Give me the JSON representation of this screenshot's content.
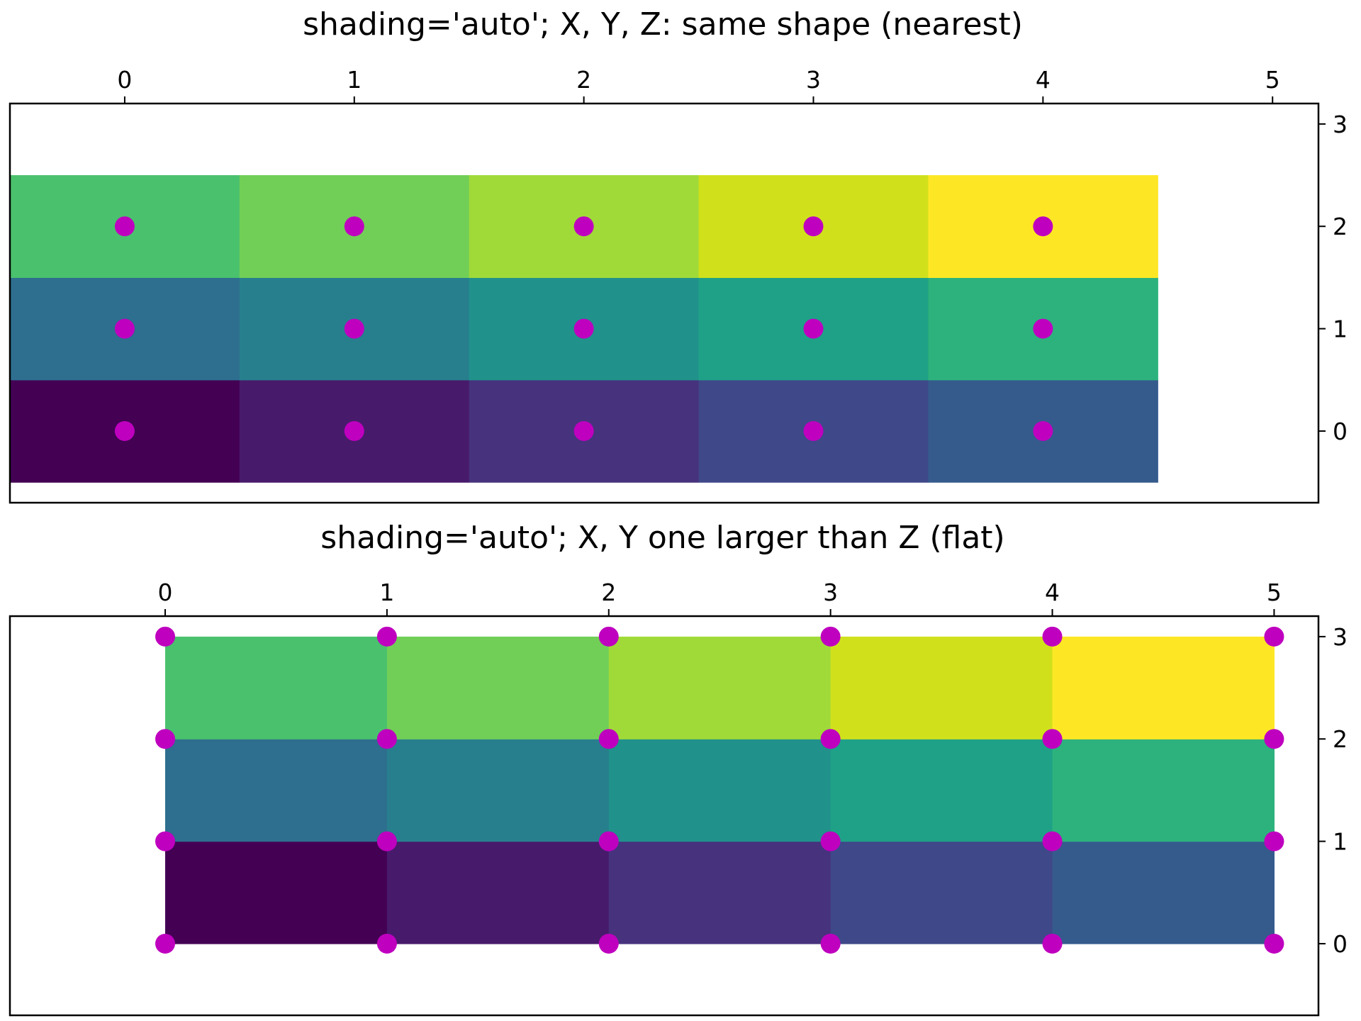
{
  "chart_data": [
    {
      "type": "heatmap",
      "title": "shading='auto'; X, Y, Z: same shape (nearest)",
      "xlabel": "",
      "ylabel": "",
      "x_axis_position": "top",
      "y_axis_position": "right",
      "xlim": [
        -0.5,
        5.2
      ],
      "ylim": [
        -0.7,
        3.2
      ],
      "xticks": [
        0,
        1,
        2,
        3,
        4,
        5
      ],
      "yticks": [
        0,
        1,
        2,
        3
      ],
      "shading": "nearest",
      "x": [
        0,
        1,
        2,
        3,
        4
      ],
      "y": [
        0,
        1,
        2
      ],
      "cell_colors": [
        [
          "#440154",
          "#481a6c",
          "#47327e",
          "#3f4889",
          "#355b8d"
        ],
        [
          "#2e6e8e",
          "#277f8e",
          "#21918c",
          "#1fa187",
          "#2db27d"
        ],
        [
          "#4ac16d",
          "#71cf57",
          "#a0da39",
          "#d0e11c",
          "#fde725"
        ]
      ],
      "markers": {
        "color": "#bf00bf",
        "points": [
          [
            0,
            0
          ],
          [
            1,
            0
          ],
          [
            2,
            0
          ],
          [
            3,
            0
          ],
          [
            4,
            0
          ],
          [
            0,
            1
          ],
          [
            1,
            1
          ],
          [
            2,
            1
          ],
          [
            3,
            1
          ],
          [
            4,
            1
          ],
          [
            0,
            2
          ],
          [
            1,
            2
          ],
          [
            2,
            2
          ],
          [
            3,
            2
          ],
          [
            4,
            2
          ]
        ]
      }
    },
    {
      "type": "heatmap",
      "title": "shading='auto'; X, Y one larger than Z (flat)",
      "xlabel": "",
      "ylabel": "",
      "x_axis_position": "top",
      "y_axis_position": "right",
      "xlim": [
        -0.7,
        5.2
      ],
      "ylim": [
        -0.7,
        3.2
      ],
      "xticks": [
        0,
        1,
        2,
        3,
        4,
        5
      ],
      "yticks": [
        0,
        1,
        2,
        3
      ],
      "shading": "flat",
      "x_edges": [
        0,
        1,
        2,
        3,
        4,
        5
      ],
      "y_edges": [
        0,
        1,
        2,
        3
      ],
      "cell_colors": [
        [
          "#440154",
          "#481a6c",
          "#47327e",
          "#3f4889",
          "#355b8d"
        ],
        [
          "#2e6e8e",
          "#277f8e",
          "#21918c",
          "#1fa187",
          "#2db27d"
        ],
        [
          "#4ac16d",
          "#71cf57",
          "#a0da39",
          "#d0e11c",
          "#fde725"
        ]
      ],
      "markers": {
        "color": "#bf00bf",
        "points": [
          [
            0,
            0
          ],
          [
            1,
            0
          ],
          [
            2,
            0
          ],
          [
            3,
            0
          ],
          [
            4,
            0
          ],
          [
            5,
            0
          ],
          [
            0,
            1
          ],
          [
            1,
            1
          ],
          [
            2,
            1
          ],
          [
            3,
            1
          ],
          [
            4,
            1
          ],
          [
            5,
            1
          ],
          [
            0,
            2
          ],
          [
            1,
            2
          ],
          [
            2,
            2
          ],
          [
            3,
            2
          ],
          [
            4,
            2
          ],
          [
            5,
            2
          ],
          [
            0,
            3
          ],
          [
            1,
            3
          ],
          [
            2,
            3
          ],
          [
            3,
            3
          ],
          [
            4,
            3
          ],
          [
            5,
            3
          ]
        ]
      }
    }
  ]
}
